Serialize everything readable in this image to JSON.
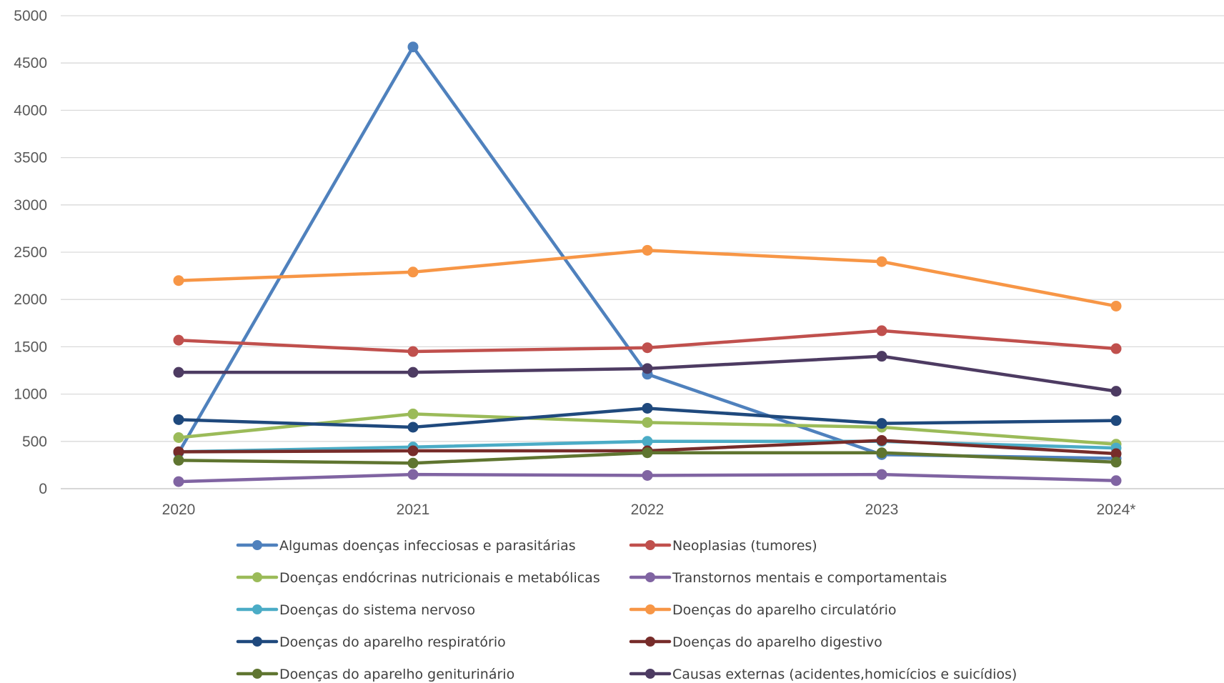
{
  "chart_data": {
    "type": "line",
    "title": "",
    "xlabel": "",
    "ylabel": "",
    "categories": [
      "2020",
      "2021",
      "2022",
      "2023",
      "2024*"
    ],
    "ylim": [
      0,
      5000
    ],
    "yticks": [
      0,
      500,
      1000,
      1500,
      2000,
      2500,
      3000,
      3500,
      4000,
      4500,
      5000
    ],
    "grid": "horizontal",
    "legend_position": "bottom",
    "series": [
      {
        "name": "Algumas doenças infecciosas e parasitárias",
        "color": "#4F81BD",
        "values": [
          380,
          4670,
          1210,
          360,
          320
        ]
      },
      {
        "name": "Neoplasias (tumores)",
        "color": "#C0504D",
        "values": [
          1570,
          1450,
          1490,
          1670,
          1480
        ]
      },
      {
        "name": "Doenças endócrinas nutricionais e metabólicas",
        "color": "#9BBB59",
        "values": [
          540,
          790,
          700,
          650,
          470
        ]
      },
      {
        "name": "Transtornos mentais e comportamentais",
        "color": "#8064A2",
        "values": [
          75,
          150,
          140,
          150,
          85
        ]
      },
      {
        "name": "Doenças do sistema nervoso",
        "color": "#4BACC6",
        "values": [
          390,
          440,
          500,
          500,
          430
        ]
      },
      {
        "name": "Doenças do aparelho circulatório",
        "color": "#F79646",
        "values": [
          2200,
          2290,
          2520,
          2400,
          1930
        ]
      },
      {
        "name": "Doenças do aparelho respiratório",
        "color": "#1F497D",
        "values": [
          730,
          650,
          850,
          690,
          720
        ]
      },
      {
        "name": "Doenças do aparelho digestivo",
        "color": "#772C2A",
        "values": [
          390,
          400,
          400,
          510,
          370
        ]
      },
      {
        "name": "Doenças do aparelho geniturinário",
        "color": "#5F7530",
        "values": [
          300,
          270,
          380,
          380,
          280
        ]
      },
      {
        "name": "Causas externas (acidentes,homicícios e suicídios)",
        "color": "#4D3B62",
        "values": [
          1230,
          1230,
          1270,
          1400,
          1030
        ]
      }
    ]
  }
}
